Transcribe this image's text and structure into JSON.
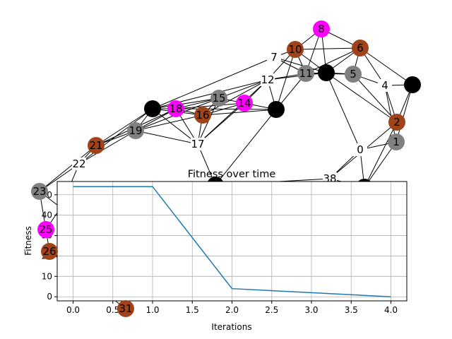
{
  "node_colors": {
    "black": "#000000",
    "gray": "#808080",
    "magenta": "#ff00ff",
    "brown": "#a0421a",
    "plain": "#ffffff"
  },
  "graph": {
    "labeled_nodes": [
      {
        "id": "0",
        "text": "0",
        "color": "plain"
      },
      {
        "id": "1",
        "text": "1",
        "color": "gray"
      },
      {
        "id": "2",
        "text": "2",
        "color": "brown"
      },
      {
        "id": "4",
        "text": "4",
        "color": "plain"
      },
      {
        "id": "5",
        "text": "5",
        "color": "gray"
      },
      {
        "id": "6",
        "text": "6",
        "color": "brown"
      },
      {
        "id": "7",
        "text": "7",
        "color": "plain"
      },
      {
        "id": "8",
        "text": "8",
        "color": "magenta"
      },
      {
        "id": "10",
        "text": "10",
        "color": "brown"
      },
      {
        "id": "11",
        "text": "11",
        "color": "gray"
      },
      {
        "id": "12",
        "text": "12",
        "color": "plain"
      },
      {
        "id": "14",
        "text": "14",
        "color": "magenta"
      },
      {
        "id": "15",
        "text": "15",
        "color": "gray"
      },
      {
        "id": "16",
        "text": "16",
        "color": "brown"
      },
      {
        "id": "17",
        "text": "17",
        "color": "plain"
      },
      {
        "id": "18",
        "text": "18",
        "color": "magenta"
      },
      {
        "id": "19",
        "text": "19",
        "color": "gray"
      },
      {
        "id": "21",
        "text": "21",
        "color": "brown"
      },
      {
        "id": "22",
        "text": "22",
        "color": "plain"
      },
      {
        "id": "23",
        "text": "23",
        "color": "gray"
      },
      {
        "id": "25",
        "text": "25",
        "color": "magenta"
      },
      {
        "id": "26",
        "text": "26",
        "color": "brown"
      },
      {
        "id": "31",
        "text": "31",
        "color": "brown"
      },
      {
        "id": "38",
        "text": "38",
        "color": "plain"
      }
    ],
    "unlabeled_nodes": [
      {
        "id": "bA",
        "color": "black"
      },
      {
        "id": "bB",
        "color": "black"
      },
      {
        "id": "bC",
        "color": "black"
      },
      {
        "id": "bD",
        "color": "black"
      },
      {
        "id": "bE",
        "color": "black"
      },
      {
        "id": "bF",
        "color": "black"
      }
    ],
    "edges": [
      [
        "8",
        "10"
      ],
      [
        "8",
        "6"
      ],
      [
        "8",
        "11"
      ],
      [
        "8",
        "bA"
      ],
      [
        "10",
        "6"
      ],
      [
        "10",
        "11"
      ],
      [
        "10",
        "bA"
      ],
      [
        "10",
        "12"
      ],
      [
        "10",
        "bB"
      ],
      [
        "6",
        "bA"
      ],
      [
        "6",
        "5"
      ],
      [
        "6",
        "4"
      ],
      [
        "6",
        "bC"
      ],
      [
        "6",
        "11"
      ],
      [
        "7",
        "bA"
      ],
      [
        "7",
        "11"
      ],
      [
        "7",
        "10"
      ],
      [
        "7",
        "bD"
      ],
      [
        "11",
        "bA"
      ],
      [
        "11",
        "12"
      ],
      [
        "11",
        "bB"
      ],
      [
        "11",
        "5"
      ],
      [
        "bA",
        "5"
      ],
      [
        "bA",
        "0"
      ],
      [
        "bA",
        "12"
      ],
      [
        "bA",
        "2"
      ],
      [
        "5",
        "4"
      ],
      [
        "5",
        "2"
      ],
      [
        "4",
        "bC"
      ],
      [
        "4",
        "2"
      ],
      [
        "4",
        "1"
      ],
      [
        "bC",
        "2"
      ],
      [
        "bC",
        "1"
      ],
      [
        "2",
        "bE"
      ],
      [
        "2",
        "38"
      ],
      [
        "1",
        "bE"
      ],
      [
        "1",
        "0"
      ],
      [
        "0",
        "bE"
      ],
      [
        "0",
        "38"
      ],
      [
        "38",
        "bE"
      ],
      [
        "38",
        "bF"
      ],
      [
        "12",
        "14"
      ],
      [
        "12",
        "15"
      ],
      [
        "12",
        "bB"
      ],
      [
        "12",
        "bD"
      ],
      [
        "12",
        "16"
      ],
      [
        "12",
        "17"
      ],
      [
        "14",
        "bB"
      ],
      [
        "14",
        "15"
      ],
      [
        "14",
        "16"
      ],
      [
        "14",
        "18"
      ],
      [
        "14",
        "17"
      ],
      [
        "bB",
        "bF"
      ],
      [
        "bB",
        "16"
      ],
      [
        "bB",
        "18"
      ],
      [
        "15",
        "16"
      ],
      [
        "15",
        "18"
      ],
      [
        "15",
        "bD"
      ],
      [
        "15",
        "19"
      ],
      [
        "15",
        "17"
      ],
      [
        "16",
        "18"
      ],
      [
        "16",
        "17"
      ],
      [
        "16",
        "19"
      ],
      [
        "16",
        "bD"
      ],
      [
        "18",
        "bD"
      ],
      [
        "18",
        "19"
      ],
      [
        "18",
        "17"
      ],
      [
        "18",
        "21"
      ],
      [
        "bD",
        "19"
      ],
      [
        "bD",
        "17"
      ],
      [
        "bD",
        "21"
      ],
      [
        "bD",
        "22"
      ],
      [
        "19",
        "17"
      ],
      [
        "19",
        "21"
      ],
      [
        "19",
        "22"
      ],
      [
        "17",
        "bF"
      ],
      [
        "21",
        "22"
      ],
      [
        "21",
        "23"
      ],
      [
        "22",
        "23"
      ],
      [
        "22",
        "bG"
      ],
      [
        "23",
        "bG"
      ],
      [
        "23",
        "25"
      ],
      [
        "bG",
        "25"
      ],
      [
        "25",
        "26"
      ],
      [
        "26",
        "31"
      ]
    ]
  },
  "chart_data": {
    "type": "line",
    "title": "Fitness over time",
    "xlabel": "Iterations",
    "ylabel": "Fitness",
    "x": [
      0,
      1,
      2,
      4
    ],
    "y": [
      54,
      54,
      4,
      0
    ],
    "xlim": [
      -0.2,
      4.2
    ],
    "ylim": [
      -2,
      56.5
    ],
    "xticks": [
      "0.0",
      "0.5",
      "1.0",
      "1.5",
      "2.0",
      "2.5",
      "3.0",
      "3.5",
      "4.0"
    ],
    "yticks": [
      "0",
      "10",
      "20",
      "30",
      "40",
      "50"
    ],
    "grid": true,
    "line_color": "#1f77b4"
  }
}
